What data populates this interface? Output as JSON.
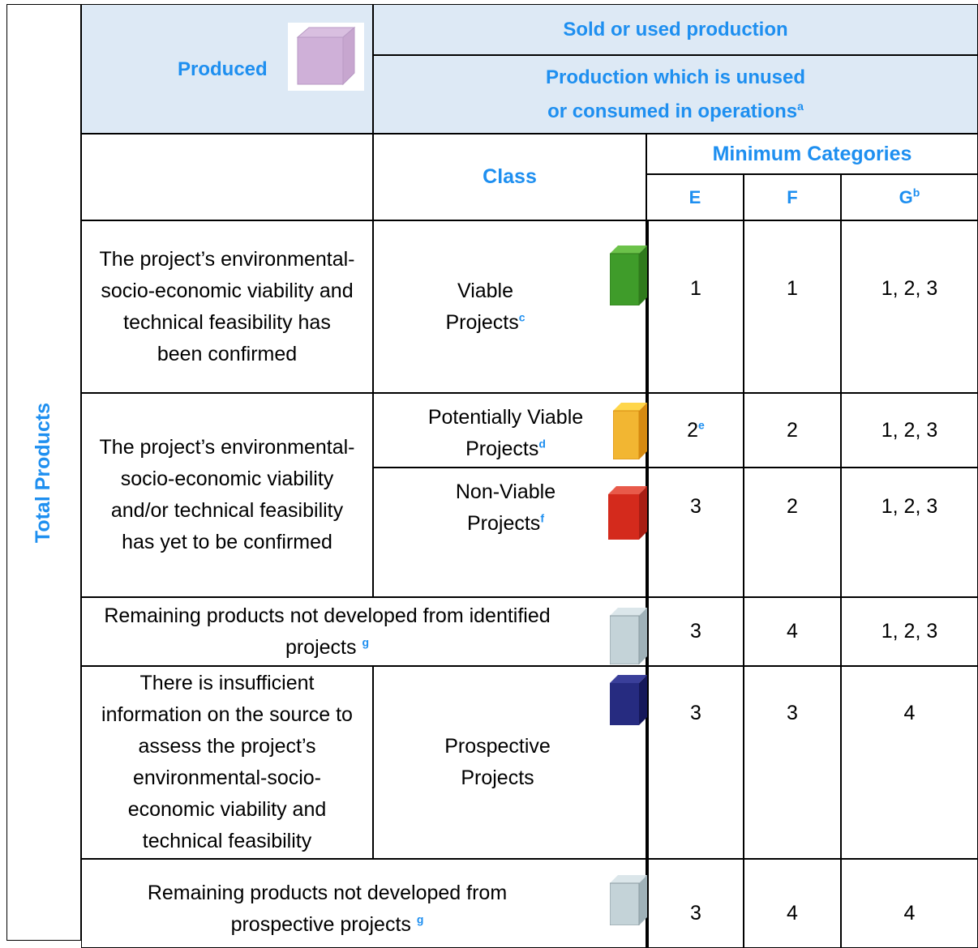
{
  "side_label": "Total Products",
  "header": {
    "produced": "Produced",
    "sold": "Sold or used production",
    "unused": "Production which is unused or consumed in operations",
    "unused_note": "a",
    "class": "Class",
    "minimum_categories": "Minimum Categories",
    "columns": [
      "E",
      "F",
      "G"
    ],
    "g_note": "b"
  },
  "rows": [
    {
      "description": "The project’s environmental-socio-economic viability and technical feasibility has been confirmed",
      "class": "Viable Projects",
      "class_note": "c",
      "E": "1",
      "F": "1",
      "G": "1, 2, 3"
    },
    {
      "description": "The project’s environmental-socio-economic viability and/or technical feasibility has yet to be confirmed",
      "class": "Potentially Viable Projects",
      "class_note": "d",
      "E": "2",
      "E_note": "e",
      "F": "2",
      "G": "1, 2, 3"
    },
    {
      "class": "Non-Viable Projects",
      "class_note": "f",
      "E": "3",
      "F": "2",
      "G": "1, 2, 3"
    },
    {
      "description": "Remaining products not developed from identified projects",
      "description_note": "g",
      "E": "3",
      "F": "4",
      "G": "1, 2, 3"
    },
    {
      "description": "There is insufficient information on the source to assess the project’s environmental-socio-economic viability and technical feasibility",
      "class": "Prospective Projects",
      "E": "3",
      "F": "3",
      "G": "4"
    },
    {
      "description": "Remaining products not developed from prospective projects",
      "description_note": "g",
      "E": "3",
      "F": "4",
      "G": "4"
    }
  ]
}
